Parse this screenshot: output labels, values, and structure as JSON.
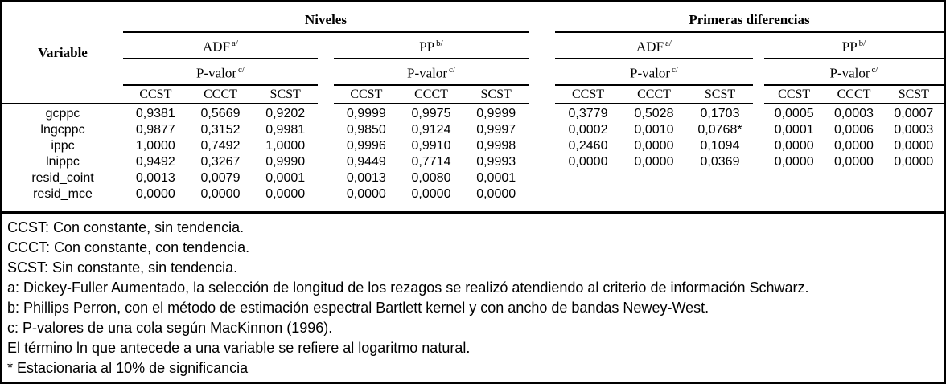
{
  "table": {
    "title_col": "Variable",
    "super_groups": [
      {
        "label": "Niveles"
      },
      {
        "label": "Primeras diferencias"
      }
    ],
    "test_headers": [
      {
        "name": "ADF",
        "sup": "a/"
      },
      {
        "name": "PP",
        "sup": "b/"
      },
      {
        "name": "ADF",
        "sup": "a/"
      },
      {
        "name": "PP",
        "sup": "b/"
      }
    ],
    "pvalor_label": "P-valor",
    "pvalor_sup": "c/",
    "subcolumns": [
      "CCST",
      "CCCT",
      "SCST"
    ],
    "rows": [
      {
        "variable": "gcppc",
        "values": [
          "0,9381",
          "0,5669",
          "0,9202",
          "0,9999",
          "0,9975",
          "0,9999",
          "0,3779",
          "0,5028",
          "0,1703",
          "0,0005",
          "0,0003",
          "0,0007"
        ]
      },
      {
        "variable": "lngcppc",
        "values": [
          "0,9877",
          "0,3152",
          "0,9981",
          "0,9850",
          "0,9124",
          "0,9997",
          "0,0002",
          "0,0010",
          "0,0768*",
          "0,0001",
          "0,0006",
          "0,0003"
        ]
      },
      {
        "variable": "ippc",
        "values": [
          "1,0000",
          "0,7492",
          "1,0000",
          "0,9996",
          "0,9910",
          "0,9998",
          "0,2460",
          "0,0000",
          "0,1094",
          "0,0000",
          "0,0000",
          "0,0000"
        ]
      },
      {
        "variable": "lnippc",
        "values": [
          "0,9492",
          "0,3267",
          "0,9990",
          "0,9449",
          "0,7714",
          "0,9993",
          "0,0000",
          "0,0000",
          "0,0369",
          "0,0000",
          "0,0000",
          "0,0000"
        ]
      },
      {
        "variable": "resid_coint",
        "values": [
          "0,0013",
          "0,0079",
          "0,0001",
          "0,0013",
          "0,0080",
          "0,0001",
          "",
          "",
          "",
          "",
          "",
          ""
        ]
      },
      {
        "variable": "resid_mce",
        "values": [
          "0,0000",
          "0,0000",
          "0,0000",
          "0,0000",
          "0,0000",
          "0,0000",
          "",
          "",
          "",
          "",
          "",
          ""
        ]
      }
    ],
    "notes": [
      "CCST: Con constante, sin tendencia.",
      "CCCT: Con constante, con tendencia.",
      "SCST: Sin constante, sin tendencia.",
      "a: Dickey-Fuller Aumentado, la selección de longitud de los rezagos se realizó atendiendo al criterio de información Schwarz.",
      "b: Phillips Perron, con el método de estimación espectral Bartlett kernel y con ancho de bandas Newey-West.",
      "c: P-valores de una cola según MacKinnon (1996).",
      "El término ln que antecede a una variable se refiere al logaritmo natural.",
      "* Estacionaria al 10% de significancia"
    ]
  }
}
